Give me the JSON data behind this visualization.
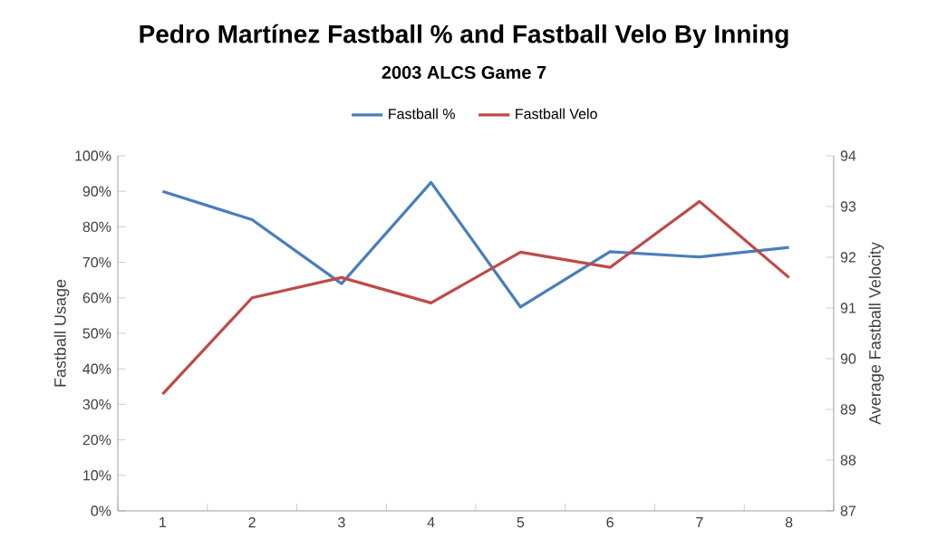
{
  "chart_data": {
    "type": "line",
    "title": "Pedro Martínez Fastball % and Fastball Velo By Inning",
    "subtitle": "2003 ALCS Game 7",
    "ylabel": "Fastball Usage",
    "y2label": "Average Fastball Velocity",
    "categories": [
      "1",
      "2",
      "3",
      "4",
      "5",
      "6",
      "7",
      "8"
    ],
    "series": [
      {
        "name": "Fastball %",
        "color": "#4a7ebb",
        "values": [
          0.9,
          0.82,
          0.64,
          0.925,
          0.574,
          0.73,
          0.715,
          0.742
        ]
      },
      {
        "name": "Fastball Velo",
        "color": "#be4b48",
        "axis": "y2",
        "values": [
          89.3,
          91.2,
          91.6,
          91.1,
          92.1,
          91.8,
          93.1,
          91.6
        ]
      }
    ],
    "ylim": [
      0,
      1
    ],
    "yticks": [
      {
        "value": 0,
        "label": "0%"
      },
      {
        "value": 0.1,
        "label": "10%"
      },
      {
        "value": 0.2,
        "label": "20%"
      },
      {
        "value": 0.3,
        "label": "30%"
      },
      {
        "value": 0.4,
        "label": "40%"
      },
      {
        "value": 0.5,
        "label": "50%"
      },
      {
        "value": 0.6,
        "label": "60%"
      },
      {
        "value": 0.7,
        "label": "70%"
      },
      {
        "value": 0.8,
        "label": "80%"
      },
      {
        "value": 0.9,
        "label": "90%"
      },
      {
        "value": 1,
        "label": "100%"
      }
    ],
    "y2lim": [
      87,
      94
    ],
    "y2ticks": [
      87,
      88,
      89,
      90,
      91,
      92,
      93,
      94
    ],
    "legend": "top",
    "grid": false,
    "marker": "none",
    "line_style": "solid"
  }
}
